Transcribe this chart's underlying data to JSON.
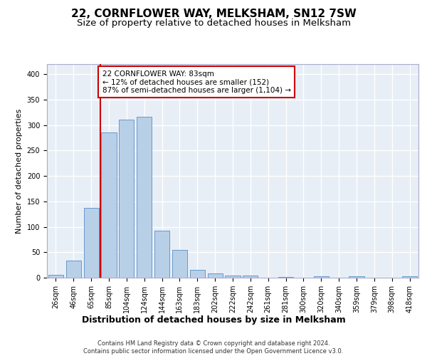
{
  "title": "22, CORNFLOWER WAY, MELKSHAM, SN12 7SW",
  "subtitle": "Size of property relative to detached houses in Melksham",
  "xlabel": "Distribution of detached houses by size in Melksham",
  "ylabel": "Number of detached properties",
  "categories": [
    "26sqm",
    "46sqm",
    "65sqm",
    "85sqm",
    "104sqm",
    "124sqm",
    "144sqm",
    "163sqm",
    "183sqm",
    "202sqm",
    "222sqm",
    "242sqm",
    "261sqm",
    "281sqm",
    "300sqm",
    "320sqm",
    "340sqm",
    "359sqm",
    "379sqm",
    "398sqm",
    "418sqm"
  ],
  "values": [
    6,
    33,
    137,
    286,
    311,
    316,
    92,
    54,
    16,
    9,
    4,
    4,
    0,
    2,
    0,
    3,
    0,
    3,
    0,
    0,
    3
  ],
  "bar_color": "#b8cfe8",
  "bar_edge_color": "#6699cc",
  "vline_color": "#cc0000",
  "annotation_text": "22 CORNFLOWER WAY: 83sqm\n← 12% of detached houses are smaller (152)\n87% of semi-detached houses are larger (1,104) →",
  "annotation_box_color": "#cc0000",
  "ylim": [
    0,
    420
  ],
  "yticks": [
    0,
    50,
    100,
    150,
    200,
    250,
    300,
    350,
    400
  ],
  "background_color": "#e8eef6",
  "grid_color": "#ffffff",
  "footer_text": "Contains HM Land Registry data © Crown copyright and database right 2024.\nContains public sector information licensed under the Open Government Licence v3.0.",
  "title_fontsize": 11,
  "subtitle_fontsize": 9.5,
  "xlabel_fontsize": 9,
  "ylabel_fontsize": 8,
  "annotation_fontsize": 7.5,
  "tick_fontsize": 7
}
